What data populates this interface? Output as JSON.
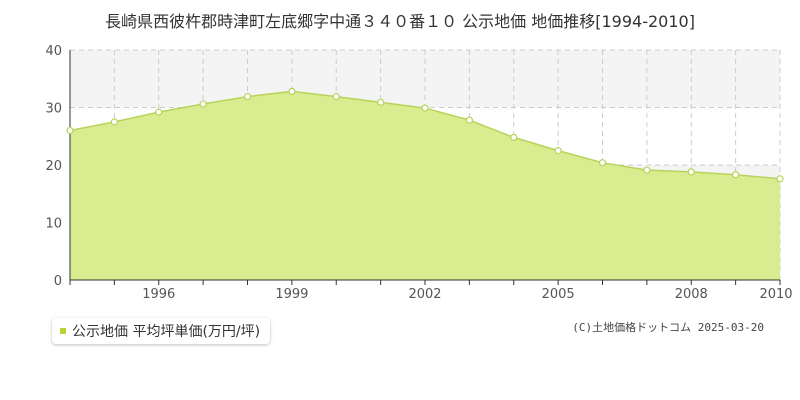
{
  "colors": {
    "area_fill": "#d9ec8f",
    "line": "#b9d35a",
    "marker_stroke": "#b9d35a",
    "marker_fill": "#ffffff",
    "band_fill": "#f4f4f4",
    "grid": "#cccccc",
    "axis": "#333333",
    "legend_swatch": "#b5d334"
  },
  "chart_data": {
    "type": "area",
    "title": "長崎県西彼杵郡時津町左底郷字中通３４０番１０ 公示地価 地価推移[1994-2010]",
    "xlabel": "",
    "ylabel": "",
    "xlim": [
      1994,
      2010
    ],
    "ylim": [
      0,
      40
    ],
    "y_ticks": [
      0,
      10,
      20,
      30,
      40
    ],
    "x_ticks": [
      1996,
      1999,
      2002,
      2005,
      2008,
      2010
    ],
    "grid": true,
    "legend_position": "bottom-left",
    "series": [
      {
        "name": "公示地価 平均坪単価(万円/坪)",
        "x": [
          1994,
          1995,
          1996,
          1997,
          1998,
          1999,
          2000,
          2001,
          2002,
          2003,
          2004,
          2005,
          2006,
          2007,
          2008,
          2009,
          2010
        ],
        "values": [
          26.0,
          27.5,
          29.2,
          30.6,
          31.9,
          32.8,
          31.9,
          30.9,
          29.9,
          27.8,
          24.8,
          22.5,
          20.4,
          19.1,
          18.8,
          18.3,
          17.6
        ]
      }
    ]
  },
  "legend": {
    "label": "公示地価 平均坪単価(万円/坪)"
  },
  "footer": {
    "copyright": "(C)土地価格ドットコム 2025-03-20"
  }
}
